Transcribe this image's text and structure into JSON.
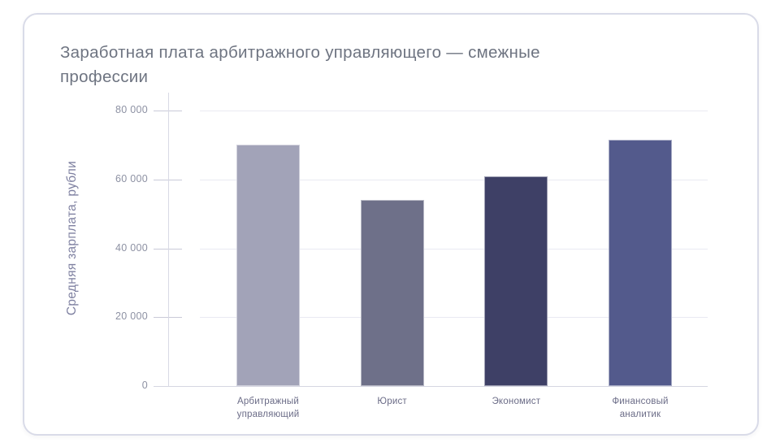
{
  "header": {
    "title": "Заработная плата арбитражного управляющего — смежные\nпрофессии",
    "title_color": "#6e7481"
  },
  "chart_data": {
    "type": "bar",
    "title": "Заработная плата арбитражного управляющего — смежные профессии",
    "categories": [
      "Арбитражный\nуправляющий",
      "Юрист",
      "Экономист",
      "Финансовый\nаналитик"
    ],
    "values": [
      70000,
      54000,
      61000,
      71500
    ],
    "bar_colors": [
      "#a2a3b8",
      "#6e7089",
      "#3e4066",
      "#535a8c"
    ],
    "xlabel": "",
    "ylabel": "Средняя зарплата, рубли",
    "ylim": [
      0,
      80000
    ],
    "yticks": [
      0,
      20000,
      40000,
      60000,
      80000
    ],
    "ytick_labels": [
      "0",
      "20 000",
      "40 000",
      "60 000",
      "80 000"
    ],
    "grid": true,
    "legend": false,
    "colors": {
      "gridline": "#e9eaf2",
      "axis": "#d8d9e5",
      "tick_label": "#8d91a3",
      "category_label": "#6b6c87",
      "y_axis_title": "#7f81a1",
      "card_border": "#d9dbe8"
    }
  }
}
